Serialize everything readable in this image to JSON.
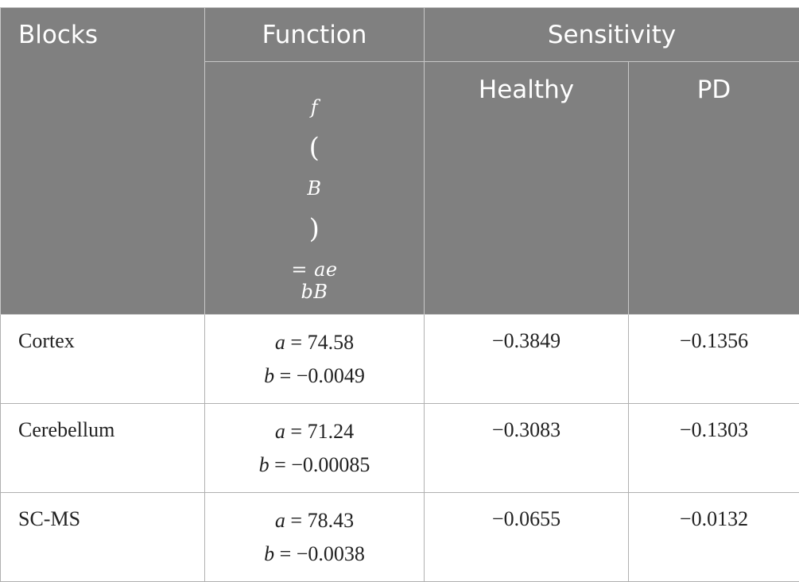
{
  "header": {
    "blocks": "Blocks",
    "function": "Function",
    "sensitivity": "Sensitivity",
    "formula": {
      "f": "f",
      "B": "B",
      "rhs": "= ae",
      "exp": "bB"
    },
    "healthy": "Healthy",
    "pd": "PD"
  },
  "rows": [
    {
      "block": "Cortex",
      "a_sym": "a",
      "a_val": " = 74.58",
      "b_sym": "b",
      "b_val": " = −0.0049",
      "healthy": "−0.3849",
      "pd": "−0.1356"
    },
    {
      "block": "Cerebellum",
      "a_sym": "a",
      "a_val": " = 71.24",
      "b_sym": "b",
      "b_val": " = −0.00085",
      "healthy": "−0.3083",
      "pd": "−0.1303"
    },
    {
      "block": "SC-MS",
      "a_sym": "a",
      "a_val": " = 78.43",
      "b_sym": "b",
      "b_val": " = −0.0038",
      "healthy": "−0.0655",
      "pd": "−0.0132"
    }
  ]
}
